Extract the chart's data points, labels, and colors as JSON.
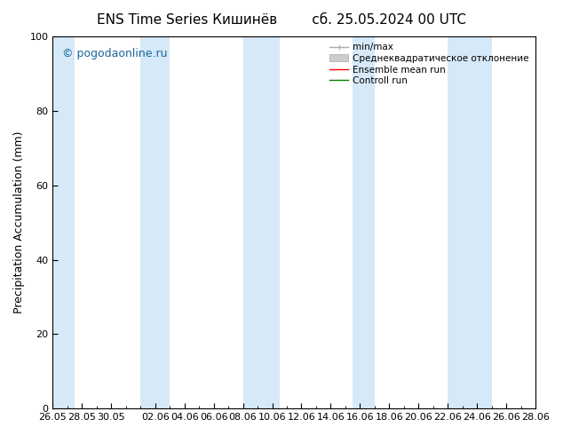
{
  "title_left": "ENS Time Series Кишинёв",
  "title_right": "сб. 25.05.2024 00 UTC",
  "ylabel": "Precipitation Accumulation (mm)",
  "ylim": [
    0,
    100
  ],
  "yticks": [
    0,
    20,
    40,
    60,
    80,
    100
  ],
  "watermark": "© pogodaonline.ru",
  "background_color": "#ffffff",
  "plot_bg_color": "#ffffff",
  "band_color": "#d6e9f8",
  "num_days": 34,
  "x_tick_labels": [
    "26.05",
    "28.05",
    "30.05",
    "02.06",
    "04.06",
    "06.06",
    "08.06",
    "10.06",
    "12.06",
    "14.06",
    "16.06",
    "18.06",
    "20.06",
    "22.06",
    "24.06",
    "26.06",
    "28.06"
  ],
  "x_tick_positions": [
    0,
    2,
    4,
    7,
    9,
    11,
    13,
    15,
    17,
    19,
    21,
    23,
    25,
    27,
    29,
    31,
    33
  ],
  "shaded_bands": [
    [
      0,
      1.5
    ],
    [
      6,
      8
    ],
    [
      13,
      15.5
    ],
    [
      20.5,
      22
    ],
    [
      27,
      30
    ]
  ],
  "legend_labels": [
    "min/max",
    "Среднеквадратическое отклонение",
    "Ensemble mean run",
    "Controll run"
  ],
  "legend_line_colors": [
    "#aaaaaa",
    "#bbbbbb",
    "#ff0000",
    "#008000"
  ],
  "title_fontsize": 11,
  "tick_fontsize": 8,
  "ylabel_fontsize": 9,
  "watermark_fontsize": 9,
  "legend_fontsize": 7.5
}
